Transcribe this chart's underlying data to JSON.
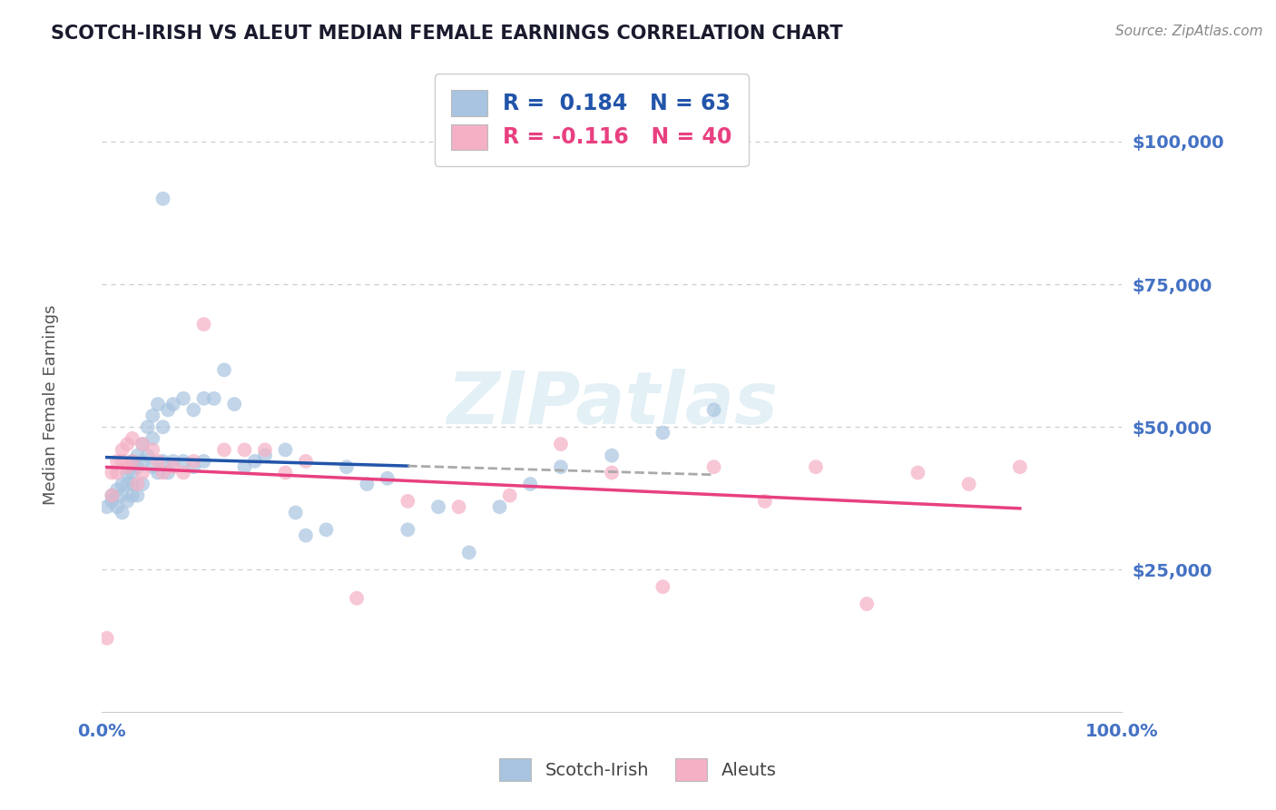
{
  "title": "SCOTCH-IRISH VS ALEUT MEDIAN FEMALE EARNINGS CORRELATION CHART",
  "source": "Source: ZipAtlas.com",
  "ylabel": "Median Female Earnings",
  "xlim": [
    0.0,
    1.0
  ],
  "ylim": [
    0,
    112500
  ],
  "yticks": [
    25000,
    50000,
    75000,
    100000
  ],
  "ytick_labels": [
    "$25,000",
    "$50,000",
    "$75,000",
    "$100,000"
  ],
  "xtick_labels": [
    "0.0%",
    "100.0%"
  ],
  "background_color": "#ffffff",
  "grid_color": "#c8c8c8",
  "title_color": "#1a1a2e",
  "tick_color": "#4472c4",
  "scotch_irish_color": "#a8c4e0",
  "aleut_color": "#f4b0c4",
  "scotch_irish_line_color": "#2255aa",
  "aleut_line_color": "#e84080",
  "scotch_irish_R": 0.184,
  "scotch_irish_N": 63,
  "aleut_R": -0.116,
  "aleut_N": 40,
  "scotch_irish_x": [
    0.005,
    0.01,
    0.01,
    0.015,
    0.015,
    0.02,
    0.02,
    0.02,
    0.025,
    0.025,
    0.025,
    0.03,
    0.03,
    0.03,
    0.03,
    0.035,
    0.035,
    0.035,
    0.04,
    0.04,
    0.04,
    0.045,
    0.045,
    0.05,
    0.05,
    0.05,
    0.055,
    0.055,
    0.06,
    0.06,
    0.06,
    0.065,
    0.065,
    0.07,
    0.07,
    0.08,
    0.08,
    0.09,
    0.09,
    0.1,
    0.1,
    0.11,
    0.12,
    0.13,
    0.14,
    0.15,
    0.16,
    0.18,
    0.19,
    0.2,
    0.22,
    0.24,
    0.26,
    0.28,
    0.3,
    0.33,
    0.36,
    0.39,
    0.42,
    0.45,
    0.5,
    0.55,
    0.6
  ],
  "scotch_irish_y": [
    36000,
    37000,
    38000,
    39000,
    36000,
    40000,
    38000,
    35000,
    42000,
    40000,
    37000,
    44000,
    42000,
    40000,
    38000,
    45000,
    43000,
    38000,
    47000,
    44000,
    40000,
    50000,
    45000,
    52000,
    48000,
    43000,
    54000,
    42000,
    90000,
    50000,
    44000,
    53000,
    42000,
    54000,
    44000,
    55000,
    44000,
    53000,
    43000,
    55000,
    44000,
    55000,
    60000,
    54000,
    43000,
    44000,
    45000,
    46000,
    35000,
    31000,
    32000,
    43000,
    40000,
    41000,
    32000,
    36000,
    28000,
    36000,
    40000,
    43000,
    45000,
    49000,
    53000
  ],
  "aleut_x": [
    0.005,
    0.01,
    0.01,
    0.015,
    0.015,
    0.02,
    0.02,
    0.025,
    0.025,
    0.03,
    0.03,
    0.035,
    0.04,
    0.04,
    0.05,
    0.055,
    0.06,
    0.07,
    0.08,
    0.09,
    0.1,
    0.12,
    0.14,
    0.16,
    0.18,
    0.2,
    0.25,
    0.3,
    0.35,
    0.4,
    0.45,
    0.5,
    0.55,
    0.6,
    0.65,
    0.7,
    0.75,
    0.8,
    0.85,
    0.9
  ],
  "aleut_y": [
    13000,
    42000,
    38000,
    44000,
    42000,
    46000,
    44000,
    47000,
    43000,
    48000,
    44000,
    40000,
    47000,
    42000,
    46000,
    44000,
    42000,
    43000,
    42000,
    44000,
    68000,
    46000,
    46000,
    46000,
    42000,
    44000,
    20000,
    37000,
    36000,
    38000,
    47000,
    42000,
    22000,
    43000,
    37000,
    43000,
    19000,
    42000,
    40000,
    43000
  ]
}
